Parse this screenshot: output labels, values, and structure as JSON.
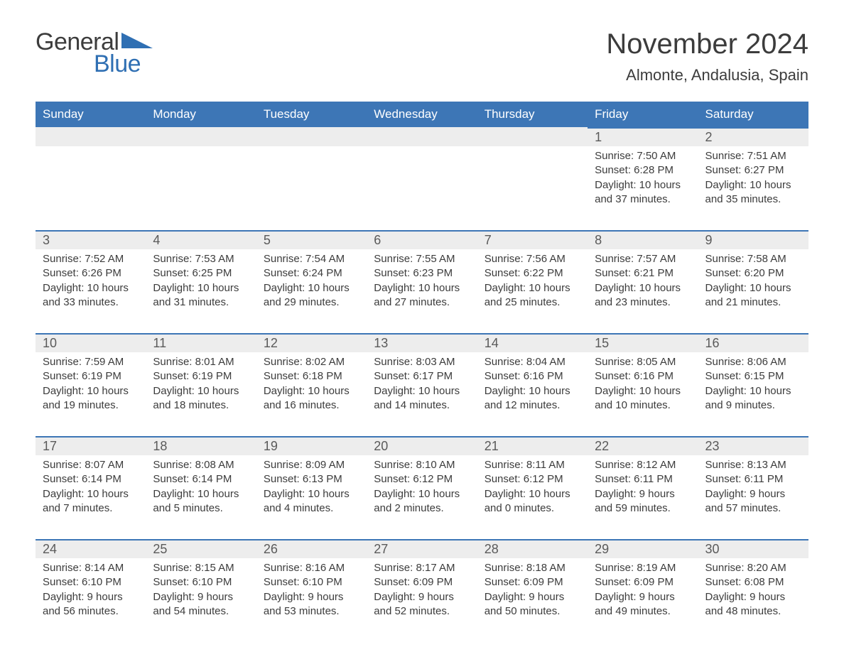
{
  "logo": {
    "text1": "General",
    "text2": "Blue",
    "arrow_color": "#2f6fb3"
  },
  "title": "November 2024",
  "location": "Almonte, Andalusia, Spain",
  "colors": {
    "header_bg": "#3d76b6",
    "header_text": "#ffffff",
    "daynum_bg": "#ededed",
    "daynum_border": "#3d76b6",
    "text": "#3c3c3c",
    "logo_blue": "#2f6fb3",
    "page_bg": "#ffffff"
  },
  "days_of_week": [
    "Sunday",
    "Monday",
    "Tuesday",
    "Wednesday",
    "Thursday",
    "Friday",
    "Saturday"
  ],
  "labels": {
    "sunrise": "Sunrise",
    "sunset": "Sunset",
    "daylight": "Daylight"
  },
  "weeks": [
    [
      null,
      null,
      null,
      null,
      null,
      {
        "n": 1,
        "sunrise": "7:50 AM",
        "sunset": "6:28 PM",
        "daylight": "10 hours and 37 minutes."
      },
      {
        "n": 2,
        "sunrise": "7:51 AM",
        "sunset": "6:27 PM",
        "daylight": "10 hours and 35 minutes."
      }
    ],
    [
      {
        "n": 3,
        "sunrise": "7:52 AM",
        "sunset": "6:26 PM",
        "daylight": "10 hours and 33 minutes."
      },
      {
        "n": 4,
        "sunrise": "7:53 AM",
        "sunset": "6:25 PM",
        "daylight": "10 hours and 31 minutes."
      },
      {
        "n": 5,
        "sunrise": "7:54 AM",
        "sunset": "6:24 PM",
        "daylight": "10 hours and 29 minutes."
      },
      {
        "n": 6,
        "sunrise": "7:55 AM",
        "sunset": "6:23 PM",
        "daylight": "10 hours and 27 minutes."
      },
      {
        "n": 7,
        "sunrise": "7:56 AM",
        "sunset": "6:22 PM",
        "daylight": "10 hours and 25 minutes."
      },
      {
        "n": 8,
        "sunrise": "7:57 AM",
        "sunset": "6:21 PM",
        "daylight": "10 hours and 23 minutes."
      },
      {
        "n": 9,
        "sunrise": "7:58 AM",
        "sunset": "6:20 PM",
        "daylight": "10 hours and 21 minutes."
      }
    ],
    [
      {
        "n": 10,
        "sunrise": "7:59 AM",
        "sunset": "6:19 PM",
        "daylight": "10 hours and 19 minutes."
      },
      {
        "n": 11,
        "sunrise": "8:01 AM",
        "sunset": "6:19 PM",
        "daylight": "10 hours and 18 minutes."
      },
      {
        "n": 12,
        "sunrise": "8:02 AM",
        "sunset": "6:18 PM",
        "daylight": "10 hours and 16 minutes."
      },
      {
        "n": 13,
        "sunrise": "8:03 AM",
        "sunset": "6:17 PM",
        "daylight": "10 hours and 14 minutes."
      },
      {
        "n": 14,
        "sunrise": "8:04 AM",
        "sunset": "6:16 PM",
        "daylight": "10 hours and 12 minutes."
      },
      {
        "n": 15,
        "sunrise": "8:05 AM",
        "sunset": "6:16 PM",
        "daylight": "10 hours and 10 minutes."
      },
      {
        "n": 16,
        "sunrise": "8:06 AM",
        "sunset": "6:15 PM",
        "daylight": "10 hours and 9 minutes."
      }
    ],
    [
      {
        "n": 17,
        "sunrise": "8:07 AM",
        "sunset": "6:14 PM",
        "daylight": "10 hours and 7 minutes."
      },
      {
        "n": 18,
        "sunrise": "8:08 AM",
        "sunset": "6:14 PM",
        "daylight": "10 hours and 5 minutes."
      },
      {
        "n": 19,
        "sunrise": "8:09 AM",
        "sunset": "6:13 PM",
        "daylight": "10 hours and 4 minutes."
      },
      {
        "n": 20,
        "sunrise": "8:10 AM",
        "sunset": "6:12 PM",
        "daylight": "10 hours and 2 minutes."
      },
      {
        "n": 21,
        "sunrise": "8:11 AM",
        "sunset": "6:12 PM",
        "daylight": "10 hours and 0 minutes."
      },
      {
        "n": 22,
        "sunrise": "8:12 AM",
        "sunset": "6:11 PM",
        "daylight": "9 hours and 59 minutes."
      },
      {
        "n": 23,
        "sunrise": "8:13 AM",
        "sunset": "6:11 PM",
        "daylight": "9 hours and 57 minutes."
      }
    ],
    [
      {
        "n": 24,
        "sunrise": "8:14 AM",
        "sunset": "6:10 PM",
        "daylight": "9 hours and 56 minutes."
      },
      {
        "n": 25,
        "sunrise": "8:15 AM",
        "sunset": "6:10 PM",
        "daylight": "9 hours and 54 minutes."
      },
      {
        "n": 26,
        "sunrise": "8:16 AM",
        "sunset": "6:10 PM",
        "daylight": "9 hours and 53 minutes."
      },
      {
        "n": 27,
        "sunrise": "8:17 AM",
        "sunset": "6:09 PM",
        "daylight": "9 hours and 52 minutes."
      },
      {
        "n": 28,
        "sunrise": "8:18 AM",
        "sunset": "6:09 PM",
        "daylight": "9 hours and 50 minutes."
      },
      {
        "n": 29,
        "sunrise": "8:19 AM",
        "sunset": "6:09 PM",
        "daylight": "9 hours and 49 minutes."
      },
      {
        "n": 30,
        "sunrise": "8:20 AM",
        "sunset": "6:08 PM",
        "daylight": "9 hours and 48 minutes."
      }
    ]
  ]
}
